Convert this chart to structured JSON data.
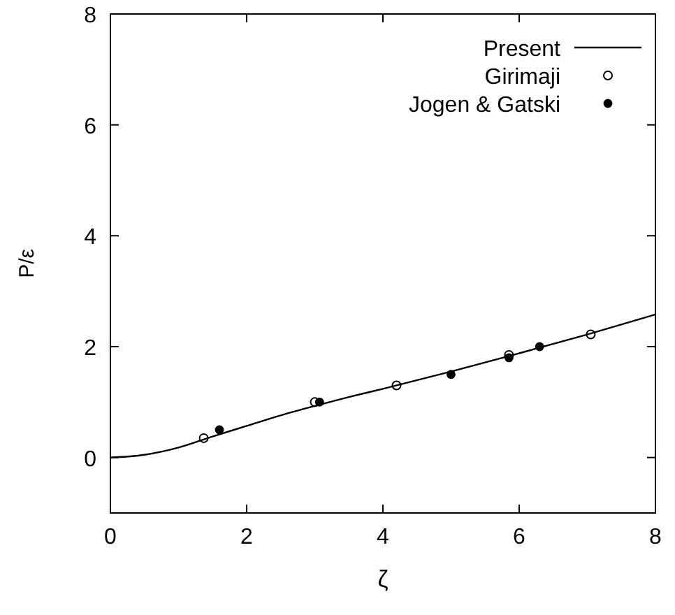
{
  "chart_data": {
    "type": "line",
    "xlabel": "ζ",
    "ylabel": "P/ε",
    "xlim": [
      0,
      8
    ],
    "ylim": [
      -1,
      8
    ],
    "xticks": [
      0,
      2,
      4,
      6,
      8
    ],
    "yticks": [
      0,
      2,
      4,
      6,
      8
    ],
    "legend": "top right",
    "grid": false,
    "series": [
      {
        "name": "Present",
        "type": "line",
        "color": "#000000",
        "marker": "none",
        "x": [
          0,
          0.5,
          1,
          1.5,
          2,
          2.5,
          3,
          3.5,
          4,
          5,
          6,
          7,
          8
        ],
        "values": [
          0,
          0.05,
          0.18,
          0.38,
          0.57,
          0.76,
          0.93,
          1.09,
          1.24,
          1.55,
          1.88,
          2.22,
          2.58
        ]
      },
      {
        "name": "Girimaji",
        "type": "scatter",
        "color": "#000000",
        "marker": "open-circle",
        "x": [
          1.37,
          3.0,
          4.2,
          5.85,
          7.05
        ],
        "values": [
          0.35,
          1.0,
          1.3,
          1.85,
          2.22
        ]
      },
      {
        "name": "Jogen & Gatski",
        "type": "scatter",
        "color": "#000000",
        "marker": "circle",
        "x": [
          1.6,
          3.07,
          5.0,
          5.85,
          6.3
        ],
        "values": [
          0.5,
          1.0,
          1.5,
          1.8,
          2.0
        ]
      }
    ]
  }
}
